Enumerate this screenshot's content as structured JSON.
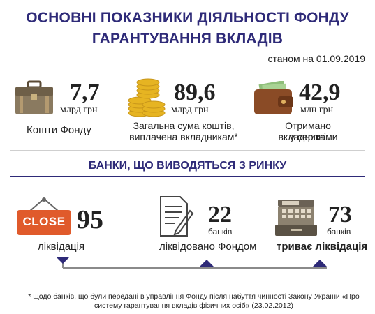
{
  "header": {
    "title_line1": "ОСНОВНІ ПОКАЗНИКИ ДІЯЛЬНОСТІ ФОНДУ",
    "title_line2": "ГАРАНТУВАННЯ ВКЛАДІВ",
    "date": "станом на 01.09.2019"
  },
  "stats": [
    {
      "icon": "briefcase-icon",
      "value": "7,7",
      "unit": "млрд грн",
      "label": "Кошти Фонду"
    },
    {
      "icon": "coins-icon",
      "value": "89,6",
      "unit": "млрд грн",
      "label_line1": "Загальна сума коштів,",
      "label_line2": "виплачена вкладникам*"
    },
    {
      "icon": "wallet-icon",
      "value": "42,9",
      "unit": "млн грн",
      "label_line1": "Отримано вкладниками",
      "label_line2": "у серпні"
    }
  ],
  "banks": {
    "heading": "БАНКИ, ЩО ВИВОДЯТЬСЯ З РИНКУ",
    "items": [
      {
        "icon": "close-sign-icon",
        "sign_text": "CLOSE",
        "value": "95",
        "label": "ліквідація"
      },
      {
        "icon": "document-pen-icon",
        "value": "22",
        "unit": "банків",
        "label": "ліквідовано Фондом"
      },
      {
        "icon": "cash-register-icon",
        "value": "73",
        "unit": "банків",
        "label": "триває ліквідація"
      }
    ]
  },
  "footnote": {
    "line1": "* щодо банків, що були передані в управління Фонду після набуття чинності Закону України «Про",
    "line2": "систему гарантування вкладів фізичних осіб» (23.02.2012)"
  },
  "colors": {
    "accent": "#2e2a78",
    "close_sign": "#e05a2b",
    "gold": "#e6b422",
    "wallet": "#8a4b26"
  }
}
